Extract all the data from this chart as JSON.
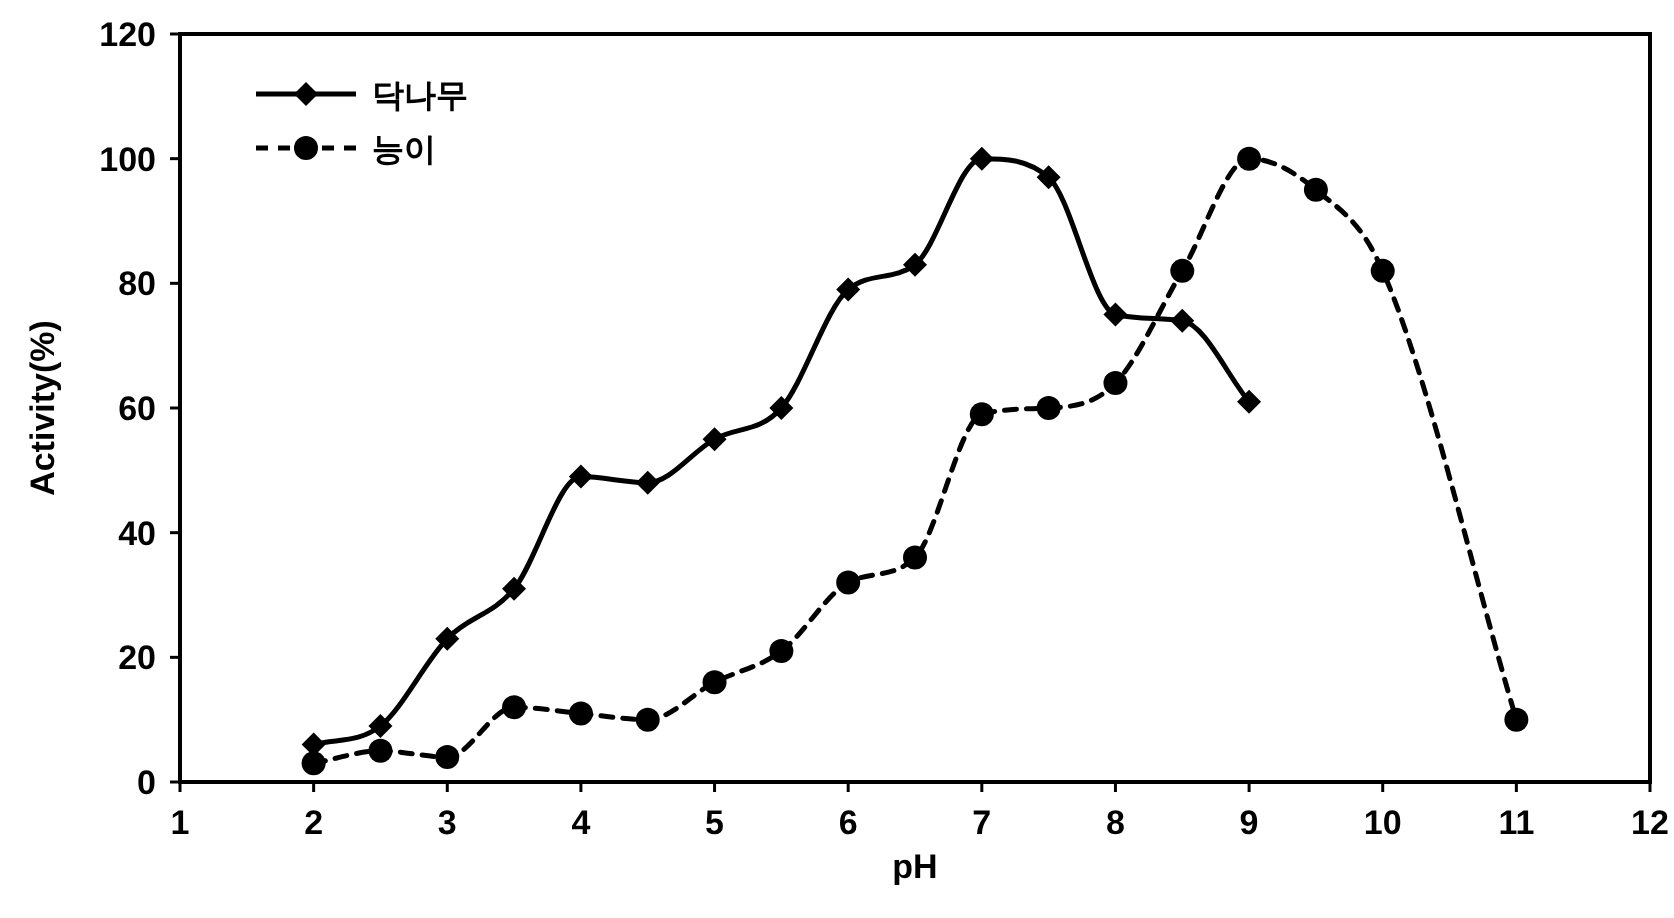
{
  "chart_data": {
    "type": "line",
    "xlabel": "pH",
    "ylabel": "Activity(%)",
    "xlim": [
      1,
      12
    ],
    "ylim": [
      0,
      120
    ],
    "xticks": [
      1,
      2,
      3,
      4,
      5,
      6,
      7,
      8,
      9,
      10,
      11,
      12
    ],
    "yticks": [
      0,
      20,
      40,
      60,
      80,
      100,
      120
    ],
    "grid": false,
    "legend": "top left",
    "series": [
      {
        "name": "닥나무",
        "color": "#000000",
        "marker": "diamond",
        "line_style": "solid",
        "x": [
          2,
          2.5,
          3,
          3.5,
          4,
          4.5,
          5,
          5.5,
          6,
          6.5,
          7,
          7.5,
          8,
          8.5,
          9
        ],
        "values": [
          6,
          9,
          23,
          31,
          49,
          48,
          55,
          60,
          79,
          83,
          100,
          97,
          75,
          74,
          61
        ]
      },
      {
        "name": "능이",
        "color": "#000000",
        "marker": "circle",
        "line_style": "dashed",
        "x": [
          2,
          2.5,
          3,
          3.5,
          4,
          4.5,
          5,
          5.5,
          6,
          6.5,
          7,
          7.5,
          8,
          8.5,
          9,
          9.5,
          10,
          11
        ],
        "values": [
          3,
          5,
          4,
          12,
          11,
          10,
          16,
          21,
          32,
          36,
          59,
          60,
          64,
          82,
          100,
          95,
          82,
          10
        ]
      }
    ]
  }
}
